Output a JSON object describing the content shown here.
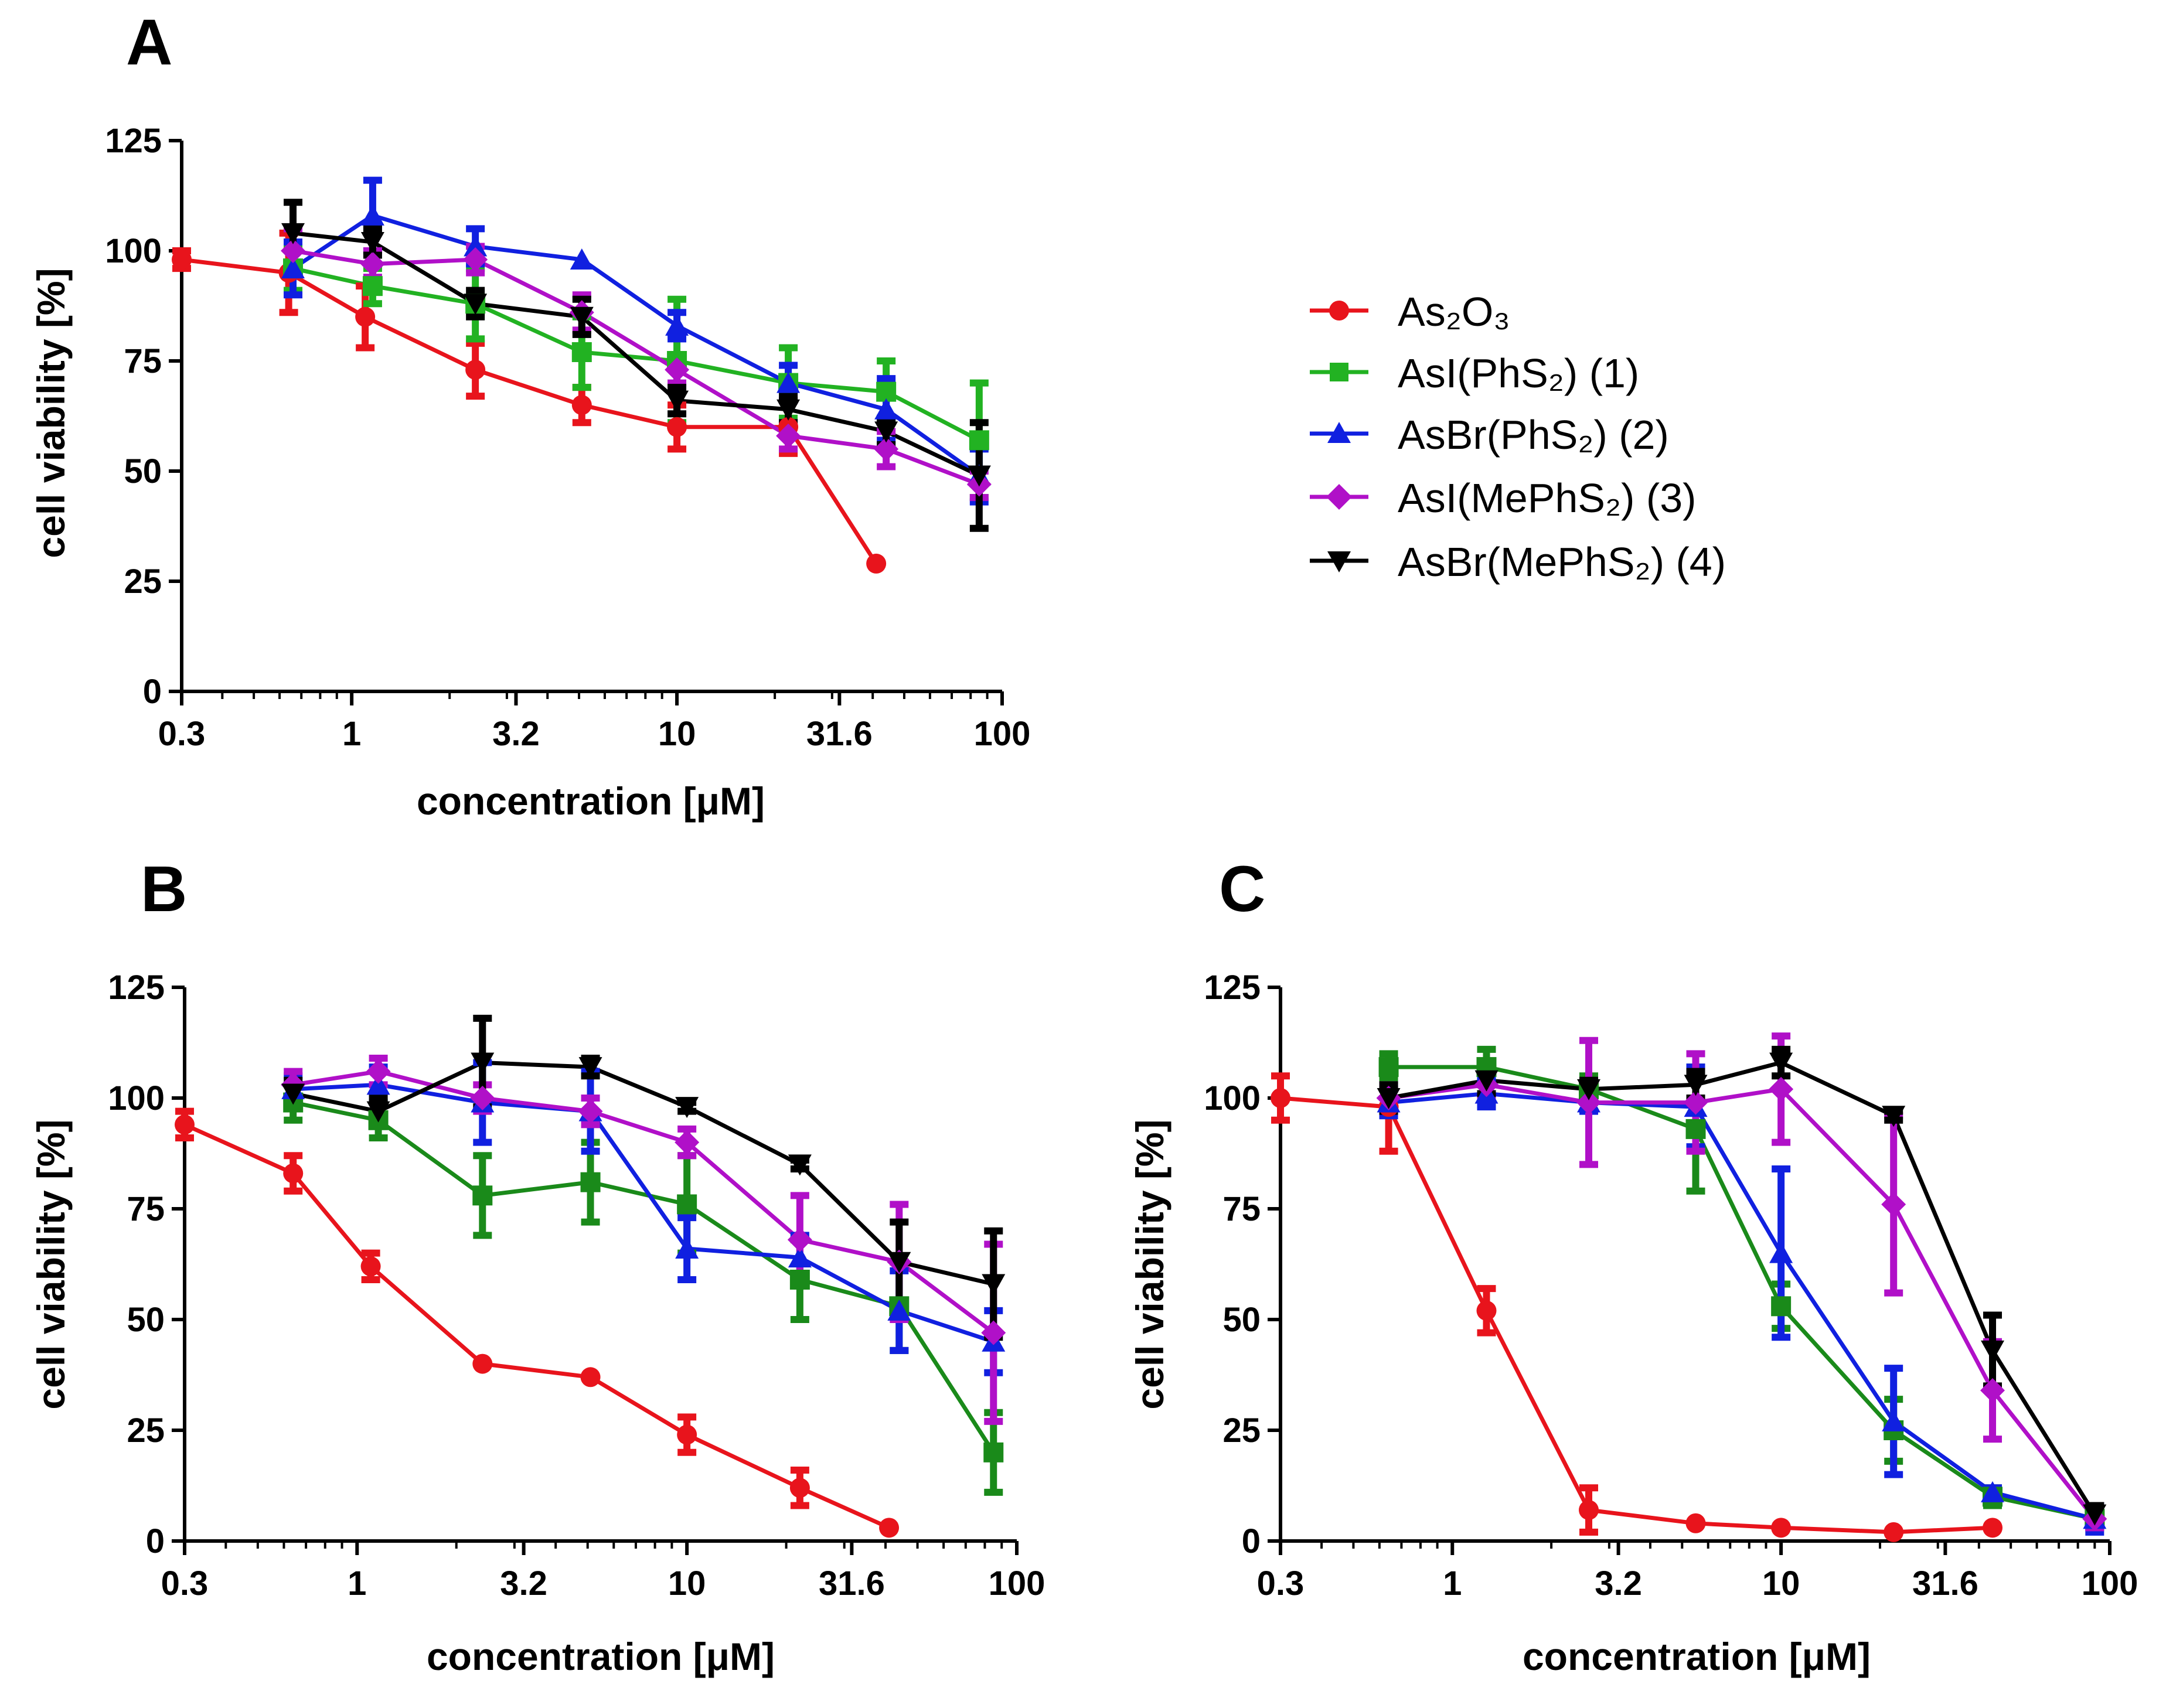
{
  "figure": {
    "legend": [
      {
        "label": "As₂O₃",
        "color": "#e8141c",
        "marker": "circle"
      },
      {
        "label": "AsI(PhS₂) (1)",
        "color": "#22b222",
        "marker": "square"
      },
      {
        "label": "AsBr(PhS₂) (2)",
        "color": "#1020e0",
        "marker": "triangle-up"
      },
      {
        "label": "AsI(MePhS₂) (3)",
        "color": "#b010c8",
        "marker": "diamond"
      },
      {
        "label": "AsBr(MePhS₂) (4)",
        "color": "#000000",
        "marker": "triangle-down"
      }
    ]
  },
  "chart_data": [
    {
      "panel": "A",
      "type": "line",
      "xscale": "log",
      "xlabel": "concentration [μM]",
      "ylabel": "cell viability [%]",
      "xlim": [
        0.3,
        100
      ],
      "ylim": [
        0,
        125
      ],
      "xticks": [
        0.3,
        1,
        3.2,
        10,
        31.6,
        100
      ],
      "xtick_labels": [
        "0.3",
        "1",
        "3.2",
        "10",
        "31.6",
        "100"
      ],
      "yticks": [
        0,
        25,
        50,
        75,
        100,
        125
      ],
      "ytick_labels": [
        "0",
        "25",
        "50",
        "75",
        "100",
        "125"
      ],
      "series": [
        {
          "name": "As₂O₃",
          "color": "#e8141c",
          "marker": "circle",
          "x": [
            0.3,
            0.64,
            1.1,
            2.4,
            5.1,
            10,
            22,
            41
          ],
          "y": [
            98,
            95,
            85,
            73,
            65,
            60,
            60,
            29
          ],
          "err": [
            2,
            9,
            7,
            6,
            4,
            5,
            6,
            0
          ]
        },
        {
          "name": "AsI(PhS₂) (1)",
          "color": "#22b222",
          "marker": "square",
          "x": [
            0.66,
            1.16,
            2.4,
            5.1,
            10,
            22,
            44,
            85
          ],
          "y": [
            96,
            92,
            88,
            77,
            75,
            70,
            68,
            57
          ],
          "err": [
            5,
            4,
            8,
            8,
            14,
            8,
            7,
            13
          ]
        },
        {
          "name": "AsBr(PhS₂) (2)",
          "color": "#1020e0",
          "marker": "triangle-up",
          "x": [
            0.66,
            1.16,
            2.4,
            5.1,
            10,
            22,
            44,
            85
          ],
          "y": [
            96,
            108,
            101,
            98,
            83,
            70,
            64,
            49
          ],
          "err": [
            6,
            8,
            4,
            0,
            3,
            4,
            7,
            6
          ]
        },
        {
          "name": "AsI(MePhS₂) (3)",
          "color": "#b010c8",
          "marker": "diamond",
          "x": [
            0.66,
            1.16,
            2.4,
            5.1,
            10,
            22,
            44,
            85
          ],
          "y": [
            100,
            97,
            98,
            86,
            73,
            58,
            55,
            47
          ],
          "err": [
            5,
            3,
            3,
            4,
            3,
            3,
            4,
            3
          ]
        },
        {
          "name": "AsBr(MePhS₂) (4)",
          "color": "#000000",
          "marker": "triangle-down",
          "x": [
            0.66,
            1.16,
            2.4,
            5.1,
            10,
            22,
            44,
            85
          ],
          "y": [
            104,
            102,
            88,
            85,
            66,
            64,
            59,
            49
          ],
          "err": [
            7,
            3,
            3,
            4,
            3,
            3,
            3,
            12
          ]
        }
      ]
    },
    {
      "panel": "B",
      "type": "line",
      "xscale": "log",
      "xlabel": "concentration [μM]",
      "ylabel": "cell viability [%]",
      "xlim": [
        0.3,
        100
      ],
      "ylim": [
        0,
        125
      ],
      "xticks": [
        0.3,
        1,
        3.2,
        10,
        31.6,
        100
      ],
      "xtick_labels": [
        "0.3",
        "1",
        "3.2",
        "10",
        "31.6",
        "100"
      ],
      "yticks": [
        0,
        25,
        50,
        75,
        100,
        125
      ],
      "ytick_labels": [
        "0",
        "25",
        "50",
        "75",
        "100",
        "125"
      ],
      "series": [
        {
          "name": "As₂O₃",
          "color": "#e8141c",
          "marker": "circle",
          "x": [
            0.3,
            0.64,
            1.1,
            2.4,
            5.1,
            10,
            22,
            41
          ],
          "y": [
            94,
            83,
            62,
            40,
            37,
            24,
            12,
            3
          ],
          "err": [
            3,
            4,
            3,
            0,
            0,
            4,
            4,
            0
          ]
        },
        {
          "name": "AsI(PhS₂) (1)",
          "color": "#1a8a1a",
          "marker": "square",
          "x": [
            0.64,
            1.16,
            2.4,
            5.1,
            10,
            22,
            44,
            85
          ],
          "y": [
            99,
            95,
            78,
            81,
            76,
            59,
            53,
            20
          ],
          "err": [
            4,
            4,
            9,
            9,
            11,
            9,
            10,
            9
          ]
        },
        {
          "name": "AsBr(PhS₂) (2)",
          "color": "#1020e0",
          "marker": "triangle-up",
          "x": [
            0.64,
            1.16,
            2.4,
            5.1,
            10,
            22,
            44,
            85
          ],
          "y": [
            102,
            103,
            99,
            97,
            66,
            64,
            52,
            45
          ],
          "err": [
            3,
            4,
            9,
            9,
            7,
            5,
            9,
            7
          ]
        },
        {
          "name": "AsI(MePhS₂) (3)",
          "color": "#b010c8",
          "marker": "diamond",
          "x": [
            0.64,
            1.16,
            2.4,
            5.1,
            10,
            22,
            44,
            85
          ],
          "y": [
            103,
            106,
            100,
            97,
            90,
            68,
            63,
            47
          ],
          "err": [
            3,
            3,
            3,
            3,
            3,
            10,
            13,
            20
          ]
        },
        {
          "name": "AsBr(MePhS₂) (4)",
          "color": "#000000",
          "marker": "triangle-down",
          "x": [
            0.64,
            1.16,
            2.4,
            5.1,
            10,
            22,
            44,
            85
          ],
          "y": [
            101,
            97,
            108,
            107,
            98,
            85,
            63,
            58
          ],
          "err": [
            3,
            3,
            10,
            2,
            1,
            1,
            9,
            12
          ]
        }
      ]
    },
    {
      "panel": "C",
      "type": "line",
      "xscale": "log",
      "xlabel": "concentration [μM]",
      "ylabel": "cell viability [%]",
      "xlim": [
        0.3,
        100
      ],
      "ylim": [
        0,
        125
      ],
      "xticks": [
        0.3,
        1,
        3.2,
        10,
        31.6,
        100
      ],
      "xtick_labels": [
        "0.3",
        "1",
        "3.2",
        "10",
        "31.6",
        "100"
      ],
      "yticks": [
        0,
        25,
        50,
        75,
        100,
        125
      ],
      "ytick_labels": [
        "0",
        "25",
        "50",
        "75",
        "100",
        "125"
      ],
      "series": [
        {
          "name": "As₂O₃",
          "color": "#e8141c",
          "marker": "circle",
          "x": [
            0.3,
            0.64,
            1.27,
            2.6,
            5.5,
            10,
            22,
            44
          ],
          "y": [
            100,
            98,
            52,
            7,
            4,
            3,
            2,
            3
          ],
          "err": [
            5,
            10,
            5,
            5,
            0,
            0,
            0,
            0
          ]
        },
        {
          "name": "AsI(PhS₂) (1)",
          "color": "#1a8a1a",
          "marker": "square",
          "x": [
            0.64,
            1.27,
            2.6,
            5.5,
            10,
            22,
            44,
            90
          ],
          "y": [
            107,
            107,
            102,
            93,
            53,
            25,
            10,
            5
          ],
          "err": [
            3,
            4,
            3,
            14,
            5,
            7,
            2,
            2
          ]
        },
        {
          "name": "AsBr(PhS₂) (2)",
          "color": "#1020e0",
          "marker": "triangle-up",
          "x": [
            0.64,
            1.27,
            2.6,
            5.5,
            10,
            22,
            44,
            90
          ],
          "y": [
            99,
            101,
            99,
            98,
            65,
            27,
            11,
            5
          ],
          "err": [
            3,
            3,
            2,
            9,
            19,
            12,
            1,
            3
          ]
        },
        {
          "name": "AsI(MePhS₂) (3)",
          "color": "#b010c8",
          "marker": "diamond",
          "x": [
            0.64,
            1.27,
            2.6,
            5.5,
            10,
            22,
            44,
            90
          ],
          "y": [
            100,
            103,
            99,
            99,
            102,
            76,
            34,
            5
          ],
          "err": [
            3,
            3,
            14,
            11,
            12,
            20,
            11,
            2
          ]
        },
        {
          "name": "AsBr(MePhS₂) (4)",
          "color": "#000000",
          "marker": "triangle-down",
          "x": [
            0.64,
            1.27,
            2.6,
            5.5,
            10,
            22,
            44,
            90
          ],
          "y": [
            100,
            104,
            102,
            103,
            108,
            96,
            43,
            6
          ],
          "err": [
            3,
            3,
            2,
            3,
            3,
            1,
            8,
            2
          ]
        }
      ]
    }
  ]
}
